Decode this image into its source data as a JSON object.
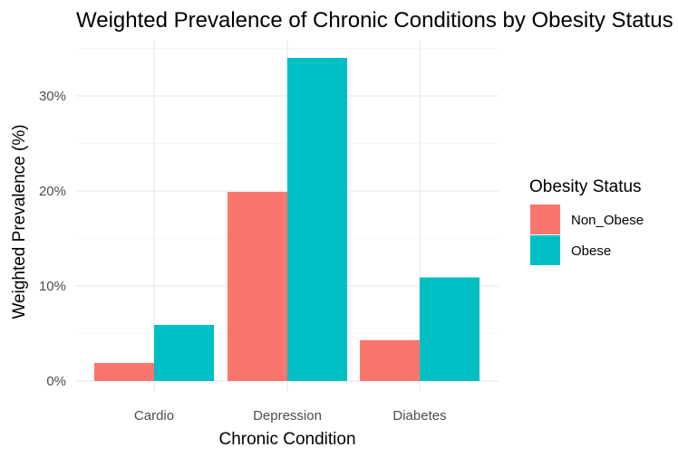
{
  "chart_data": {
    "type": "bar",
    "title": "Weighted Prevalence of Chronic Conditions by Obesity Status",
    "xlabel": "Chronic Condition",
    "ylabel": "Weighted Prevalence (%)",
    "categories": [
      "Cardio",
      "Depression",
      "Diabetes"
    ],
    "series": [
      {
        "name": "Non_Obese",
        "values": [
          1.9,
          19.9,
          4.3
        ],
        "color": "#F8766D"
      },
      {
        "name": "Obese",
        "values": [
          5.9,
          34.0,
          10.9
        ],
        "color": "#00BFC4"
      }
    ],
    "ylim": [
      0,
      35.5
    ],
    "yticks": [
      0,
      10,
      20,
      30
    ],
    "ytick_labels": [
      "0%",
      "10%",
      "20%",
      "30%"
    ],
    "grid": true,
    "legend": {
      "title": "Obesity Status",
      "position": "right"
    }
  }
}
